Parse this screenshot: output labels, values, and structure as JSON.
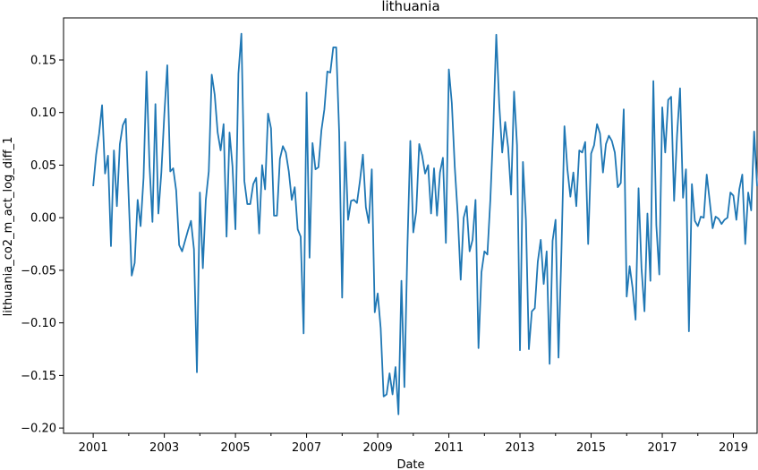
{
  "chart_data": {
    "type": "line",
    "title": "lithuania",
    "xlabel": "Date",
    "ylabel": "lithuania_co2_m_act_log_diff_1",
    "x_start": "2001-01",
    "x_step": "month",
    "xlim": [
      "2000-03",
      "2019-09"
    ],
    "ylim": [
      -0.205,
      0.19
    ],
    "x_ticks": [
      "2001",
      "2003",
      "2005",
      "2007",
      "2009",
      "2011",
      "2013",
      "2015",
      "2017",
      "2019"
    ],
    "y_ticks": [
      "0.15",
      "0.10",
      "0.05",
      "0.00",
      "−0.05",
      "−0.10",
      "−0.15",
      "−0.20"
    ],
    "grid": false,
    "line_color": "#1f77b4",
    "series": [
      {
        "values": [
          0.03,
          0.06,
          0.08,
          0.107,
          0.042,
          0.059,
          -0.027,
          0.064,
          0.011,
          0.07,
          0.088,
          0.094,
          0.018,
          -0.055,
          -0.043,
          0.017,
          -0.008,
          0.038,
          0.139,
          0.05,
          -0.004,
          0.108,
          0.004,
          0.043,
          0.098,
          0.145,
          0.044,
          0.047,
          0.026,
          -0.026,
          -0.032,
          -0.022,
          -0.012,
          -0.003,
          -0.03,
          -0.147,
          0.024,
          -0.048,
          0.017,
          0.044,
          0.136,
          0.117,
          0.081,
          0.064,
          0.089,
          -0.018,
          0.081,
          0.049,
          -0.011,
          0.137,
          0.175,
          0.035,
          0.013,
          0.013,
          0.032,
          0.038,
          -0.015,
          0.05,
          0.027,
          0.099,
          0.085,
          0.002,
          0.002,
          0.056,
          0.068,
          0.062,
          0.044,
          0.017,
          0.029,
          -0.011,
          -0.018,
          -0.11,
          0.119,
          -0.038,
          0.071,
          0.046,
          0.048,
          0.083,
          0.103,
          0.139,
          0.138,
          0.162,
          0.162,
          0.081,
          -0.076,
          0.072,
          -0.002,
          0.016,
          0.017,
          0.014,
          0.035,
          0.06,
          0.01,
          -0.005,
          0.046,
          -0.09,
          -0.072,
          -0.105,
          -0.17,
          -0.168,
          -0.148,
          -0.168,
          -0.142,
          -0.187,
          -0.06,
          -0.161,
          -0.03,
          0.073,
          -0.014,
          0.006,
          0.07,
          0.059,
          0.042,
          0.05,
          0.004,
          0.047,
          0.002,
          0.043,
          0.057,
          -0.024,
          0.141,
          0.109,
          0.048,
          0.003,
          -0.059,
          0.0,
          0.011,
          -0.032,
          -0.021,
          0.017,
          -0.124,
          -0.052,
          -0.032,
          -0.035,
          0.017,
          0.086,
          0.174,
          0.108,
          0.062,
          0.091,
          0.067,
          0.022,
          0.12,
          0.069,
          -0.126,
          0.053,
          -0.002,
          -0.125,
          -0.089,
          -0.086,
          -0.042,
          -0.021,
          -0.063,
          -0.032,
          -0.139,
          -0.022,
          -0.002,
          -0.133,
          -0.03,
          0.087,
          0.046,
          0.02,
          0.043,
          0.011,
          0.064,
          0.062,
          0.072,
          -0.025,
          0.061,
          0.069,
          0.089,
          0.08,
          0.043,
          0.07,
          0.078,
          0.073,
          0.062,
          0.029,
          0.033,
          0.103,
          -0.075,
          -0.046,
          -0.067,
          -0.097,
          0.028,
          -0.048,
          -0.089,
          0.004,
          -0.06,
          0.13,
          -0.007,
          -0.054,
          0.105,
          0.062,
          0.112,
          0.115,
          0.016,
          0.079,
          0.123,
          0.019,
          0.046,
          -0.108,
          0.032,
          -0.003,
          -0.008,
          0.001,
          0.0,
          0.041,
          0.016,
          -0.01,
          0.001,
          -0.001,
          -0.006,
          -0.002,
          0.0,
          0.024,
          0.021,
          -0.002,
          0.027,
          0.041,
          -0.025,
          0.024,
          0.007,
          0.082,
          0.03
        ]
      }
    ]
  }
}
